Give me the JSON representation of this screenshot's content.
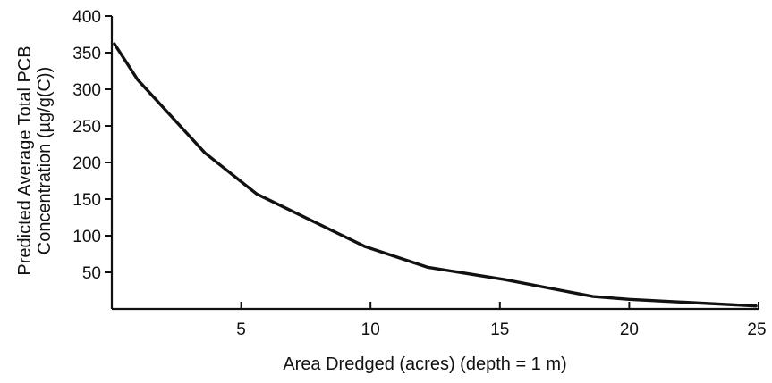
{
  "chart_data": {
    "type": "line",
    "title": "",
    "xlabel": "Area Dredged (acres) (depth = 1 m)",
    "ylabel_line1": "Predicted Average Total PCB",
    "ylabel_line2": "Concentration (µg/g(C))",
    "xlim": [
      0,
      25
    ],
    "ylim": [
      0,
      400
    ],
    "xticks": [
      5,
      10,
      15,
      20,
      25
    ],
    "yticks": [
      50,
      100,
      150,
      200,
      250,
      300,
      350,
      400
    ],
    "grid": false,
    "legend": "none",
    "series": [
      {
        "x": [
          0.1,
          1.0,
          3.6,
          5.6,
          9.8,
          12.2,
          15.2,
          18.6,
          20.0,
          24.9
        ],
        "y": [
          362,
          313,
          213,
          157,
          85,
          57,
          40,
          17,
          13,
          4
        ]
      }
    ]
  }
}
